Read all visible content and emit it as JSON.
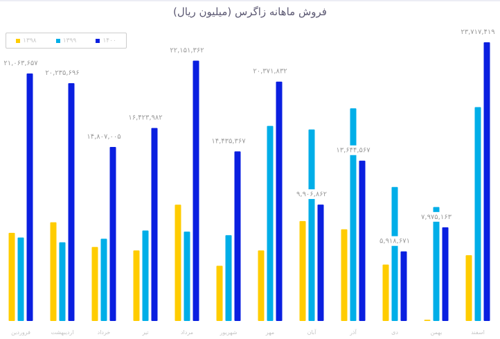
{
  "chart_data": {
    "type": "bar",
    "title": "فروش ماهانه زاگرس (میلیون ریال)",
    "xlabel": "",
    "ylabel": "",
    "ylim": [
      0,
      24000000
    ],
    "grid": false,
    "legend_position": "top-left",
    "categories": [
      "فروردین",
      "اردیبهشت",
      "خرداد",
      "تیر",
      "مرداد",
      "شهریور",
      "مهر",
      "آبان",
      "آذر",
      "دی",
      "بهمن",
      "اسفند"
    ],
    "series": [
      {
        "name": "۱۳۹۸",
        "color": "#ffcc00",
        "values": [
          7500000,
          8400000,
          6300000,
          6000000,
          9900000,
          4700000,
          6000000,
          8500000,
          7800000,
          4800000,
          100000,
          5600000
        ]
      },
      {
        "name": "۱۳۹۹",
        "color": "#00aee8",
        "values": [
          7100000,
          6700000,
          7000000,
          7700000,
          7600000,
          7300000,
          16600000,
          16300000,
          18100000,
          11400000,
          9700000,
          18200000
        ]
      },
      {
        "name": "۱۴۰۰",
        "color": "#0a1fe0",
        "values": [
          21063657,
          20235696,
          14807005,
          16423982,
          22151362,
          14435367,
          20371832,
          9906862,
          13644567,
          5918671,
          7975163,
          23717419
        ],
        "data_labels": true
      }
    ]
  }
}
